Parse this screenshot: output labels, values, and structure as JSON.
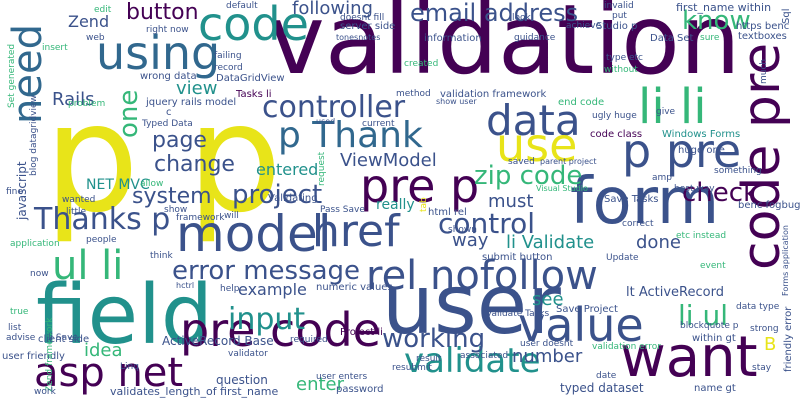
{
  "palette": {
    "dark_purple": "#440154",
    "indigo": "#3b528b",
    "blue": "#31688e",
    "teal": "#21918c",
    "green": "#35b779",
    "lime": "#90d743",
    "yellow": "#e8e419"
  },
  "words": [
    {
      "text": "validation",
      "color": "#440154"
    },
    {
      "text": "p p",
      "color": "#e8e419"
    },
    {
      "text": "field",
      "color": "#21918c"
    },
    {
      "text": "user",
      "color": "#3b528b"
    },
    {
      "text": "model",
      "color": "#3b528b"
    },
    {
      "text": "form",
      "color": "#3b528b"
    },
    {
      "text": "code",
      "color": "#21918c"
    },
    {
      "text": "using",
      "color": "#31688e"
    },
    {
      "text": "want",
      "color": "#440154"
    },
    {
      "text": "value",
      "color": "#3b528b"
    },
    {
      "text": "pre code",
      "color": "#440154"
    },
    {
      "text": "asp net",
      "color": "#440154"
    },
    {
      "text": "ul li",
      "color": "#35b779"
    },
    {
      "text": "li li",
      "color": "#35b779"
    },
    {
      "text": "pre p",
      "color": "#440154"
    },
    {
      "text": "p pre",
      "color": "#3b528b"
    },
    {
      "text": "data",
      "color": "#3b528b"
    },
    {
      "text": "use",
      "color": "#e8e419"
    },
    {
      "text": "href",
      "color": "#3b528b"
    },
    {
      "text": "rel nofollow",
      "color": "#3b528b"
    },
    {
      "text": "error message",
      "color": "#3b528b"
    },
    {
      "text": "validate",
      "color": "#21918c"
    },
    {
      "text": "Thank",
      "color": "#31688e"
    },
    {
      "text": "controller",
      "color": "#3b528b"
    },
    {
      "text": "input",
      "color": "#21918c"
    },
    {
      "text": "project",
      "color": "#3b528b"
    },
    {
      "text": "Thanks p",
      "color": "#3b528b"
    },
    {
      "text": "email address",
      "color": "#3b528b"
    },
    {
      "text": "code pre",
      "color": "#440154"
    },
    {
      "text": "control",
      "color": "#3b528b"
    },
    {
      "text": "working",
      "color": "#3b528b"
    },
    {
      "text": "li ul",
      "color": "#35b779"
    },
    {
      "text": "zip code",
      "color": "#35b779"
    },
    {
      "text": "know",
      "color": "#35b779"
    },
    {
      "text": "check",
      "color": "#440154"
    },
    {
      "text": "need",
      "color": "#31688e"
    },
    {
      "text": "button",
      "color": "#440154"
    },
    {
      "text": "one",
      "color": "#35b779"
    },
    {
      "text": "system",
      "color": "#3b528b"
    },
    {
      "text": "page",
      "color": "#3b528b"
    },
    {
      "text": "change",
      "color": "#3b528b"
    },
    {
      "text": "view",
      "color": "#21918c"
    },
    {
      "text": "ViewModel",
      "color": "#3b528b"
    },
    {
      "text": "following",
      "color": "#3b528b"
    },
    {
      "text": "way",
      "color": "#3b528b"
    },
    {
      "text": "done",
      "color": "#3b528b"
    },
    {
      "text": "li Validate",
      "color": "#21918c"
    },
    {
      "text": "entered",
      "color": "#21918c"
    },
    {
      "text": "must",
      "color": "#3b528b"
    },
    {
      "text": "Rails",
      "color": "#3b528b"
    },
    {
      "text": "idea",
      "color": "#35b779"
    },
    {
      "text": "number",
      "color": "#3b528b"
    },
    {
      "text": "see",
      "color": "#21918c"
    },
    {
      "text": "example",
      "color": "#3b528b"
    },
    {
      "text": "enter",
      "color": "#35b779"
    },
    {
      "text": "Zend",
      "color": "#3b528b"
    },
    {
      "text": "lt ActiveRecord",
      "color": "#3b528b"
    },
    {
      "text": "B",
      "color": "#e8e419"
    },
    {
      "text": "NET MVC",
      "color": "#21918c"
    },
    {
      "text": "really",
      "color": "#21918c"
    },
    {
      "text": "ActiveRecord Base",
      "color": "#3b528b"
    },
    {
      "text": "question",
      "color": "#3b528b"
    },
    {
      "text": "typed dataset",
      "color": "#3b528b"
    },
    {
      "text": "javascript",
      "color": "#3b528b"
    },
    {
      "text": "Windows Forms",
      "color": "#21918c"
    },
    {
      "text": "code class",
      "color": "#440154"
    },
    {
      "text": "validation framework",
      "color": "#3b528b"
    },
    {
      "text": "end code",
      "color": "#35b779"
    },
    {
      "text": "information",
      "color": "#3b528b"
    },
    {
      "text": "Data Set",
      "color": "#3b528b"
    },
    {
      "text": "validates_length_of first_name",
      "color": "#3b528b"
    },
    {
      "text": "numeric values",
      "color": "#3b528b"
    },
    {
      "text": "Tasks li",
      "color": "#440154"
    },
    {
      "text": "wrong data",
      "color": "#3b528b"
    },
    {
      "text": "jquery rails model",
      "color": "#3b528b"
    },
    {
      "text": "DataGridView",
      "color": "#3b528b"
    },
    {
      "text": "submit button",
      "color": "#3b528b"
    },
    {
      "text": "html rel",
      "color": "#3b528b"
    },
    {
      "text": "Pass Save",
      "color": "#3b528b"
    },
    {
      "text": "Validating",
      "color": "#3b528b"
    },
    {
      "text": "Save Tasks",
      "color": "#3b528b"
    },
    {
      "text": "Save Project",
      "color": "#3b528b"
    },
    {
      "text": "Validate Tasks",
      "color": "#3b528b"
    },
    {
      "text": "Project li",
      "color": "#440154"
    },
    {
      "text": "user doesnt",
      "color": "#3b528b"
    },
    {
      "text": "user friendly",
      "color": "#3b528b"
    },
    {
      "text": "user enters",
      "color": "#3b528b"
    },
    {
      "text": "validation error",
      "color": "#35b779"
    },
    {
      "text": "within gt",
      "color": "#3b528b"
    },
    {
      "text": "name gt",
      "color": "#3b528b"
    },
    {
      "text": "friendly error",
      "color": "#3b528b"
    },
    {
      "text": "Forms application",
      "color": "#3b528b"
    },
    {
      "text": "benc fogbugz",
      "color": "#3b528b"
    },
    {
      "text": "huge one",
      "color": "#3b528b"
    },
    {
      "text": "something",
      "color": "#3b528b"
    },
    {
      "text": "best way",
      "color": "#3b528b"
    },
    {
      "text": "data type",
      "color": "#3b528b"
    },
    {
      "text": "blockquote p",
      "color": "#3b528b"
    },
    {
      "text": "Zend framework",
      "color": "#35b779"
    },
    {
      "text": "client side",
      "color": "#3b528b"
    },
    {
      "text": "Linq",
      "color": "#3b528b"
    },
    {
      "text": "validator",
      "color": "#3b528b"
    },
    {
      "text": "password",
      "color": "#3b528b"
    },
    {
      "text": "resubmit",
      "color": "#3b528b"
    },
    {
      "text": "result",
      "color": "#3b528b"
    },
    {
      "text": "associated",
      "color": "#3b528b"
    },
    {
      "text": "required",
      "color": "#3b528b"
    },
    {
      "text": "Typed Data",
      "color": "#3b528b"
    },
    {
      "text": "tonesnotes",
      "color": "#3b528b"
    },
    {
      "text": "server side",
      "color": "#3b528b"
    },
    {
      "text": "first_name within",
      "color": "#3b528b"
    },
    {
      "text": "https benc",
      "color": "#3b528b"
    },
    {
      "text": "textboxes",
      "color": "#3b528b"
    },
    {
      "text": "Sql",
      "color": "#3b528b"
    },
    {
      "text": "Studio p",
      "color": "#3b528b"
    },
    {
      "text": "achieve",
      "color": "#3b528b"
    },
    {
      "text": "guidance",
      "color": "#3b528b"
    },
    {
      "text": "doesnt fill",
      "color": "#3b528b"
    },
    {
      "text": "default",
      "color": "#3b528b"
    },
    {
      "text": "edit",
      "color": "#35b779"
    },
    {
      "text": "web",
      "color": "#3b528b"
    },
    {
      "text": "insert",
      "color": "#35b779"
    },
    {
      "text": "right now",
      "color": "#3b528b"
    },
    {
      "text": "failing",
      "color": "#3b528b"
    },
    {
      "text": "record",
      "color": "#3b528b"
    },
    {
      "text": "method",
      "color": "#3b528b"
    },
    {
      "text": "show user",
      "color": "#3b528b"
    },
    {
      "text": "current",
      "color": "#3b528b"
    },
    {
      "text": "used",
      "color": "#3b528b"
    },
    {
      "text": "created",
      "color": "#35b779"
    },
    {
      "text": "ugly huge",
      "color": "#3b528b"
    },
    {
      "text": "give",
      "color": "#3b528b"
    },
    {
      "text": "type etc",
      "color": "#3b528b"
    },
    {
      "text": "without",
      "color": "#35b779"
    },
    {
      "text": "put",
      "color": "#3b528b"
    },
    {
      "text": "invalid",
      "color": "#3b528b"
    },
    {
      "text": "look",
      "color": "#3b528b"
    },
    {
      "text": "sure",
      "color": "#35b779"
    },
    {
      "text": "much",
      "color": "#3b528b"
    },
    {
      "text": "saved",
      "color": "#3b528b"
    },
    {
      "text": "parent project",
      "color": "#3b528b"
    },
    {
      "text": "Visual Studio",
      "color": "#35b779"
    },
    {
      "text": "amp",
      "color": "#3b528b"
    },
    {
      "text": "correct",
      "color": "#3b528b"
    },
    {
      "text": "etc instead",
      "color": "#35b779"
    },
    {
      "text": "Update",
      "color": "#3b528b"
    },
    {
      "text": "event",
      "color": "#35b779"
    },
    {
      "text": "strong",
      "color": "#3b528b"
    },
    {
      "text": "stay",
      "color": "#3b528b"
    },
    {
      "text": "date",
      "color": "#3b528b"
    },
    {
      "text": "help",
      "color": "#3b528b"
    },
    {
      "text": "think",
      "color": "#3b528b"
    },
    {
      "text": "people",
      "color": "#3b528b"
    },
    {
      "text": "little",
      "color": "#3b528b"
    },
    {
      "text": "application",
      "color": "#35b779"
    },
    {
      "text": "fine",
      "color": "#3b528b"
    },
    {
      "text": "wanted",
      "color": "#3b528b"
    },
    {
      "text": "allow",
      "color": "#35b779"
    },
    {
      "text": "show",
      "color": "#3b528b"
    },
    {
      "text": "framework",
      "color": "#3b528b"
    },
    {
      "text": "will",
      "color": "#3b528b"
    },
    {
      "text": "now",
      "color": "#3b528b"
    },
    {
      "text": "true",
      "color": "#35b779"
    },
    {
      "text": "list",
      "color": "#3b528b"
    },
    {
      "text": "advise",
      "color": "#3b528b"
    },
    {
      "text": "li Save",
      "color": "#3b528b"
    },
    {
      "text": "work",
      "color": "#3b528b"
    },
    {
      "text": "problem",
      "color": "#35b779"
    },
    {
      "text": "Set generated",
      "color": "#35b779"
    },
    {
      "text": "blog datagridview",
      "color": "#3b528b"
    },
    {
      "text": "request",
      "color": "#35b779"
    },
    {
      "text": "shown",
      "color": "#3b528b"
    },
    {
      "text": "tab",
      "color": "#e8e419"
    },
    {
      "text": "hctrl",
      "color": "#3b528b"
    },
    {
      "text": "c",
      "color": "#3b528b"
    }
  ]
}
